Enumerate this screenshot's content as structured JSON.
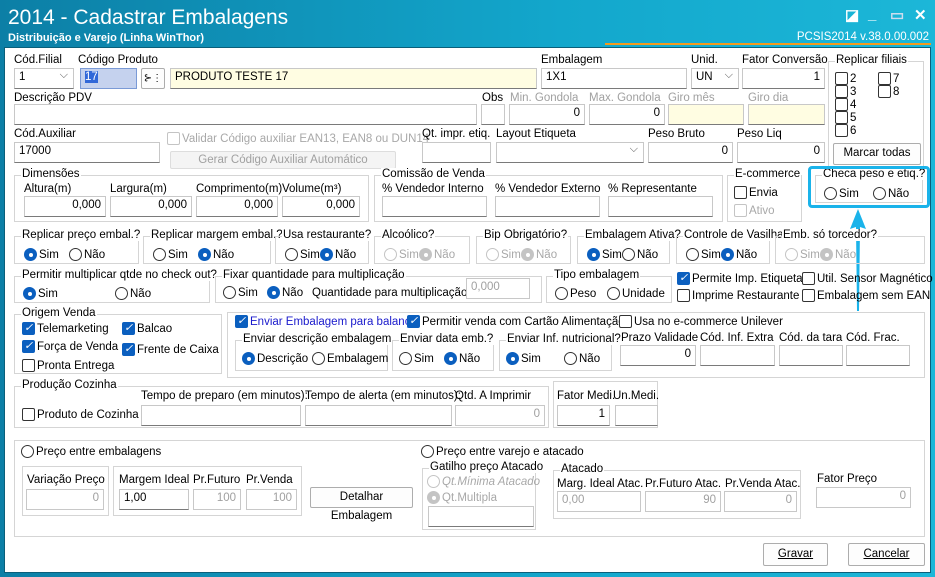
{
  "window": {
    "title": "2014 - Cadastrar Embalagens",
    "subtitle": "Distribuição e Varejo (Linha WinThor)",
    "version": "PCSIS2014  v.38.0.00.002",
    "accent": "#13a7cc",
    "highlight": "#1ab3ea"
  },
  "row1": {
    "filial_label": "Cód.Filial",
    "filial": "1",
    "codigo_label": "Código Produto",
    "codigo": "17",
    "descricao": "PRODUTO TESTE 17",
    "embalagem_label": "Embalagem",
    "embalagem": "1X1",
    "unid_label": "Unid.",
    "unid": "UN",
    "fator_label": "Fator Conversão",
    "fator": "1"
  },
  "replicar_filiais": {
    "title": "Replicar filiais",
    "items": [
      {
        "label": "2",
        "checked": false
      },
      {
        "label": "3",
        "checked": false
      },
      {
        "label": "4",
        "checked": false
      },
      {
        "label": "5",
        "checked": false
      },
      {
        "label": "6",
        "checked": false
      },
      {
        "label": "7",
        "checked": false
      },
      {
        "label": "8",
        "checked": false
      }
    ],
    "marcar_todas": "Marcar todas"
  },
  "row2": {
    "pdv_label": "Descrição PDV",
    "pdv": "",
    "obs_label": "Obs",
    "min_label": "Min. Gondola",
    "min": "0",
    "max_label": "Max. Gondola",
    "max": "0",
    "giro_mes_label": "Giro mês",
    "giro_dia_label": "Giro dia"
  },
  "row3": {
    "aux_label": "Cód.Auxiliar",
    "aux": "17000",
    "validar": "Validar Código auxiliar EAN13, EAN8 ou DUN14",
    "gerar": "Gerar Código Auxiliar Automático",
    "qt_label": "Qt. impr. etiq.",
    "layout_label": "Layout Etiqueta",
    "bruto_label": "Peso Bruto",
    "bruto": "0",
    "liq_label": "Peso Liq",
    "liq": "0"
  },
  "dimensoes": {
    "title": "Dimensões",
    "altura_label": "Altura(m)",
    "altura": "0,000",
    "largura_label": "Largura(m)",
    "largura": "0,000",
    "comp_label": "Comprimento(m)",
    "comp": "0,000",
    "volume_label": "Volume(m³)",
    "volume": "0,000"
  },
  "comissao": {
    "title": "Comissão de Venda",
    "interno": "% Vendedor Interno",
    "externo": "% Vendedor Externo",
    "rep": "% Representante"
  },
  "ecommerce": {
    "title": "E-commerce",
    "envia": "Envia",
    "envia_checked": false,
    "ativo": "Ativo",
    "ativo_checked": false
  },
  "checa": {
    "title": "Checa peso e etiq.?",
    "value": "",
    "sim": "Sim",
    "nao": "Não"
  },
  "yesno": {
    "sim": "Sim",
    "nao": "Não"
  },
  "flags": [
    {
      "title": "Replicar preço embal.?",
      "value": "Sim"
    },
    {
      "title": "Replicar margem embal.?",
      "value": "Não"
    },
    {
      "title": "Usa restaurante?",
      "value": "Não"
    },
    {
      "title": "Alcoólico?",
      "value": "Não"
    },
    {
      "title": "Bip Obrigatório?",
      "value": "Não"
    },
    {
      "title": "Embalagem Ativa?",
      "value": "Sim"
    },
    {
      "title": "Controle de Vasilhame?",
      "value": "Não"
    },
    {
      "title": "Emb. só torcedor?",
      "value": "Não"
    }
  ],
  "multiplicar": {
    "title": "Permitir multiplicar qtde no check out?",
    "value": "Sim"
  },
  "fixar": {
    "title": "Fixar quantidade para multiplicação",
    "value": "Não",
    "qtd_label": "Quantidade para multiplicação:",
    "qtd": "0,000"
  },
  "tipo": {
    "title": "Tipo embalagem",
    "peso": "Peso",
    "unidade": "Unidade",
    "value": ""
  },
  "opts": {
    "imp_etiqueta": "Permite Imp. Etiqueta",
    "imp_etiqueta_checked": true,
    "sensor": "Util. Sensor Magnético",
    "sensor_checked": false,
    "imp_rest": "Imprime Restaurante",
    "imp_rest_checked": false,
    "sem_ean": "Embalagem sem EAN",
    "sem_ean_checked": false
  },
  "origem": {
    "title": "Origem Venda",
    "telemarketing": "Telemarketing",
    "telemarketing_checked": true,
    "balcao": "Balcao",
    "balcao_checked": true,
    "forca": "Força de Venda",
    "forca_checked": true,
    "frente": "Frente de Caixa",
    "frente_checked": true,
    "pronta": "Pronta Entrega",
    "pronta_checked": false
  },
  "balanca": {
    "enviar": "Enviar Embalagem para balança",
    "enviar_checked": true,
    "cartao": "Permitir venda com Cartão Alimentação?",
    "cartao_checked": true,
    "unilever": "Usa no e-commerce Unilever",
    "unilever_checked": false,
    "desc_title": "Enviar descrição embalagem",
    "desc_value": "Descrição",
    "descricao": "Descrição",
    "embalagem": "Embalagem",
    "data_title": "Enviar data emb.?",
    "data_value": "Não",
    "inf_title": "Enviar Inf. nutricional?",
    "inf_value": "Sim",
    "prazo_label": "Prazo Validade",
    "prazo": "0",
    "extra_label": "Cód. Inf. Extra",
    "tara_label": "Cód. da tara",
    "frac_label": "Cód. Frac."
  },
  "cozinha": {
    "title": "Produção Cozinha",
    "produto": "Produto de Cozinha",
    "produto_checked": false,
    "preparo_label": "Tempo de preparo (em minutos):",
    "alerta_label": "Tempo de alerta (em minutos):",
    "qtd_label": "Qtd. A Imprimir",
    "qtd": "0",
    "fator_label": "Fator Medi.",
    "fator": "1",
    "un_label": "Un.Medi."
  },
  "preco": {
    "entre_emb": "Preço entre embalagens",
    "variacao_label": "Variação Preço",
    "variacao": "0",
    "margem_label": "Margem Ideal",
    "margem": "1,00",
    "futuro_label": "Pr.Futuro",
    "futuro": "100",
    "venda_label": "Pr.Venda",
    "venda": "100",
    "detalhar": "Detalhar Embalagem",
    "varejo": "Preço entre varejo e atacado",
    "gatilho": "Gatilho preço Atacado",
    "qt_minima": "Qt.Mínima Atacado",
    "qt_multipla": "Qt.Multipla",
    "gatilho_value": "Qt.Multipla",
    "atacado": "Atacado",
    "marg_atac_label": "Marg. Ideal Atac.",
    "marg_atac": "0,00",
    "fut_atac_label": "Pr.Futuro Atac.",
    "fut_atac": "90",
    "venda_atac_label": "Pr.Venda Atac.",
    "venda_atac": "0",
    "fator_label": "Fator Preço",
    "fator": "0"
  },
  "actions": {
    "gravar": "Gravar",
    "cancelar": "Cancelar"
  }
}
